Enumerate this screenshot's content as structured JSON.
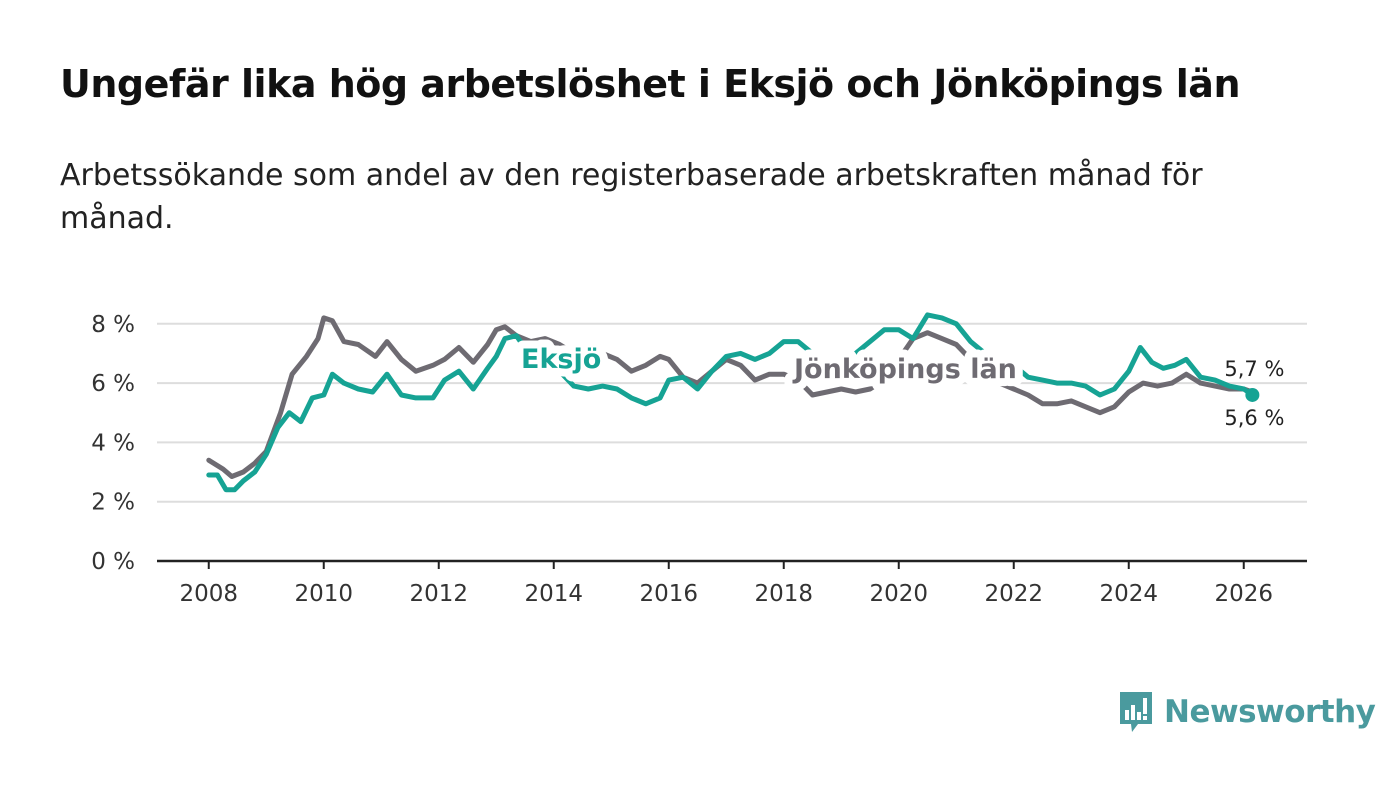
{
  "title": "Ungefär lika hög arbetslöshet i Eksjö och Jönköpings län",
  "subtitle": "Arbetssökande som andel av den registerbaserade arbetskraften månad för månad.",
  "brand": {
    "name": "Newsworthy",
    "color": "#4a9a9e",
    "icon": "newsworthy-logo-icon"
  },
  "colors": {
    "eksjo": "#16a394",
    "jonkoping": "#6e6b72",
    "grid": "#dddddd",
    "axis": "#222222"
  },
  "chart_data": {
    "type": "line",
    "title": "",
    "xlabel": "",
    "ylabel": "",
    "xlim": [
      2007.1,
      2027.1
    ],
    "ylim": [
      0,
      8.6
    ],
    "yticks": [
      0,
      2,
      4,
      6,
      8
    ],
    "ytick_labels": [
      "0 %",
      "2 %",
      "4 %",
      "6 %",
      "8 %"
    ],
    "xticks": [
      2008,
      2010,
      2012,
      2014,
      2016,
      2018,
      2020,
      2022,
      2024,
      2026
    ],
    "xtick_labels": [
      "2008",
      "2010",
      "2012",
      "2014",
      "2016",
      "2018",
      "2020",
      "2022",
      "2024",
      "2026"
    ],
    "grid": true,
    "legend": "inline labels",
    "series": [
      {
        "name": "Jönköpings län",
        "label": "Jönköpings län",
        "end_label": "5,7 %",
        "points": [
          [
            2008.0,
            3.4
          ],
          [
            2008.25,
            3.1
          ],
          [
            2008.4,
            2.85
          ],
          [
            2008.6,
            3.0
          ],
          [
            2008.8,
            3.3
          ],
          [
            2009.0,
            3.7
          ],
          [
            2009.25,
            5.0
          ],
          [
            2009.45,
            6.3
          ],
          [
            2009.7,
            6.9
          ],
          [
            2009.9,
            7.5
          ],
          [
            2010.0,
            8.2
          ],
          [
            2010.15,
            8.1
          ],
          [
            2010.35,
            7.4
          ],
          [
            2010.6,
            7.3
          ],
          [
            2010.9,
            6.9
          ],
          [
            2011.1,
            7.4
          ],
          [
            2011.35,
            6.8
          ],
          [
            2011.6,
            6.4
          ],
          [
            2011.9,
            6.6
          ],
          [
            2012.1,
            6.8
          ],
          [
            2012.35,
            7.2
          ],
          [
            2012.6,
            6.7
          ],
          [
            2012.85,
            7.3
          ],
          [
            2013.0,
            7.8
          ],
          [
            2013.15,
            7.9
          ],
          [
            2013.35,
            7.6
          ],
          [
            2013.6,
            7.4
          ],
          [
            2013.85,
            7.5
          ],
          [
            2014.1,
            7.3
          ],
          [
            2014.35,
            7.0
          ],
          [
            2014.6,
            6.8
          ],
          [
            2014.85,
            7.0
          ],
          [
            2015.1,
            6.8
          ],
          [
            2015.35,
            6.4
          ],
          [
            2015.6,
            6.6
          ],
          [
            2015.85,
            6.9
          ],
          [
            2016.0,
            6.8
          ],
          [
            2016.25,
            6.2
          ],
          [
            2016.5,
            6.0
          ],
          [
            2016.75,
            6.4
          ],
          [
            2017.0,
            6.8
          ],
          [
            2017.25,
            6.6
          ],
          [
            2017.5,
            6.1
          ],
          [
            2017.75,
            6.3
          ],
          [
            2018.0,
            6.3
          ],
          [
            2018.25,
            6.1
          ],
          [
            2018.5,
            5.6
          ],
          [
            2018.75,
            5.7
          ],
          [
            2019.0,
            5.8
          ],
          [
            2019.25,
            5.7
          ],
          [
            2019.5,
            5.8
          ],
          [
            2019.75,
            6.1
          ],
          [
            2020.0,
            6.8
          ],
          [
            2020.25,
            7.5
          ],
          [
            2020.5,
            7.7
          ],
          [
            2020.75,
            7.5
          ],
          [
            2021.0,
            7.3
          ],
          [
            2021.25,
            6.8
          ],
          [
            2021.5,
            6.4
          ],
          [
            2021.75,
            6.0
          ],
          [
            2022.0,
            5.8
          ],
          [
            2022.25,
            5.6
          ],
          [
            2022.5,
            5.3
          ],
          [
            2022.75,
            5.3
          ],
          [
            2023.0,
            5.4
          ],
          [
            2023.25,
            5.2
          ],
          [
            2023.5,
            5.0
          ],
          [
            2023.75,
            5.2
          ],
          [
            2024.0,
            5.7
          ],
          [
            2024.25,
            6.0
          ],
          [
            2024.5,
            5.9
          ],
          [
            2024.75,
            6.0
          ],
          [
            2025.0,
            6.3
          ],
          [
            2025.25,
            6.0
          ],
          [
            2025.5,
            5.9
          ],
          [
            2025.75,
            5.8
          ],
          [
            2026.0,
            5.8
          ],
          [
            2026.15,
            5.7
          ]
        ]
      },
      {
        "name": "Eksjö",
        "label": "Eksjö",
        "end_label": "5,6 %",
        "points": [
          [
            2008.0,
            2.9
          ],
          [
            2008.15,
            2.9
          ],
          [
            2008.3,
            2.4
          ],
          [
            2008.45,
            2.4
          ],
          [
            2008.6,
            2.7
          ],
          [
            2008.8,
            3.0
          ],
          [
            2009.0,
            3.6
          ],
          [
            2009.2,
            4.5
          ],
          [
            2009.4,
            5.0
          ],
          [
            2009.6,
            4.7
          ],
          [
            2009.8,
            5.5
          ],
          [
            2010.0,
            5.6
          ],
          [
            2010.15,
            6.3
          ],
          [
            2010.35,
            6.0
          ],
          [
            2010.6,
            5.8
          ],
          [
            2010.85,
            5.7
          ],
          [
            2011.1,
            6.3
          ],
          [
            2011.35,
            5.6
          ],
          [
            2011.6,
            5.5
          ],
          [
            2011.9,
            5.5
          ],
          [
            2012.1,
            6.1
          ],
          [
            2012.35,
            6.4
          ],
          [
            2012.6,
            5.8
          ],
          [
            2012.85,
            6.5
          ],
          [
            2013.0,
            6.9
          ],
          [
            2013.15,
            7.5
          ],
          [
            2013.35,
            7.6
          ],
          [
            2013.6,
            6.9
          ],
          [
            2013.85,
            6.6
          ],
          [
            2014.1,
            6.4
          ],
          [
            2014.35,
            5.9
          ],
          [
            2014.6,
            5.8
          ],
          [
            2014.85,
            5.9
          ],
          [
            2015.1,
            5.8
          ],
          [
            2015.35,
            5.5
          ],
          [
            2015.6,
            5.3
          ],
          [
            2015.85,
            5.5
          ],
          [
            2016.0,
            6.1
          ],
          [
            2016.25,
            6.2
          ],
          [
            2016.5,
            5.8
          ],
          [
            2016.75,
            6.4
          ],
          [
            2017.0,
            6.9
          ],
          [
            2017.25,
            7.0
          ],
          [
            2017.5,
            6.8
          ],
          [
            2017.75,
            7.0
          ],
          [
            2018.0,
            7.4
          ],
          [
            2018.25,
            7.4
          ],
          [
            2018.5,
            7.0
          ],
          [
            2018.75,
            6.7
          ],
          [
            2019.0,
            6.8
          ],
          [
            2019.25,
            7.0
          ],
          [
            2019.5,
            7.4
          ],
          [
            2019.75,
            7.8
          ],
          [
            2020.0,
            7.8
          ],
          [
            2020.25,
            7.5
          ],
          [
            2020.5,
            8.3
          ],
          [
            2020.75,
            8.2
          ],
          [
            2021.0,
            8.0
          ],
          [
            2021.25,
            7.4
          ],
          [
            2021.5,
            7.0
          ],
          [
            2021.75,
            6.8
          ],
          [
            2022.0,
            6.6
          ],
          [
            2022.25,
            6.2
          ],
          [
            2022.5,
            6.1
          ],
          [
            2022.75,
            6.0
          ],
          [
            2023.0,
            6.0
          ],
          [
            2023.25,
            5.9
          ],
          [
            2023.5,
            5.6
          ],
          [
            2023.75,
            5.8
          ],
          [
            2024.0,
            6.4
          ],
          [
            2024.2,
            7.2
          ],
          [
            2024.4,
            6.7
          ],
          [
            2024.6,
            6.5
          ],
          [
            2024.8,
            6.6
          ],
          [
            2025.0,
            6.8
          ],
          [
            2025.25,
            6.2
          ],
          [
            2025.5,
            6.1
          ],
          [
            2025.75,
            5.9
          ],
          [
            2026.0,
            5.8
          ],
          [
            2026.15,
            5.6
          ]
        ]
      }
    ]
  }
}
